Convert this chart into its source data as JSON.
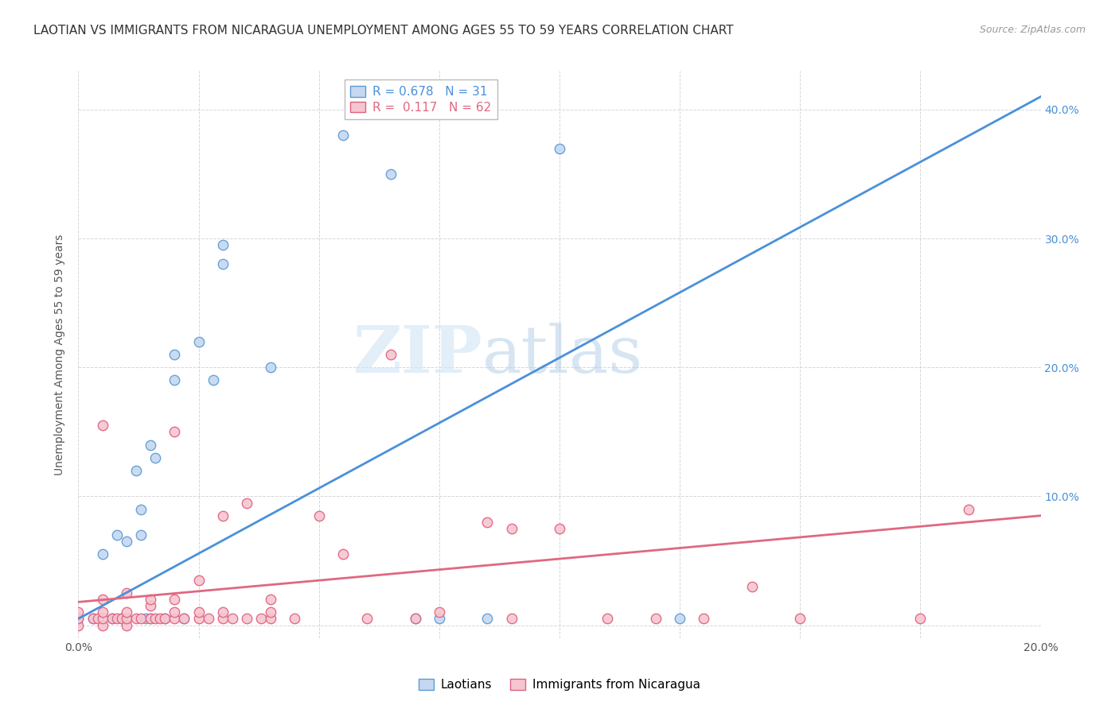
{
  "title": "LAOTIAN VS IMMIGRANTS FROM NICARAGUA UNEMPLOYMENT AMONG AGES 55 TO 59 YEARS CORRELATION CHART",
  "source": "Source: ZipAtlas.com",
  "ylabel": "Unemployment Among Ages 55 to 59 years",
  "watermark_zip": "ZIP",
  "watermark_atlas": "atlas",
  "xlim": [
    0.0,
    0.2
  ],
  "ylim": [
    -0.01,
    0.43
  ],
  "xtick_positions": [
    0.0,
    0.025,
    0.05,
    0.075,
    0.1,
    0.125,
    0.15,
    0.175,
    0.2
  ],
  "xtick_labels": [
    "0.0%",
    "",
    "",
    "",
    "",
    "",
    "",
    "",
    "20.0%"
  ],
  "ytick_positions": [
    0.0,
    0.1,
    0.2,
    0.3,
    0.4
  ],
  "ytick_labels_right": [
    "",
    "10.0%",
    "20.0%",
    "30.0%",
    "40.0%"
  ],
  "legend_r1": "R = 0.678",
  "legend_n1": "N = 31",
  "legend_r2": "R =  0.117",
  "legend_n2": "N = 62",
  "blue_fill": "#c5d8f0",
  "blue_edge": "#5b9bd5",
  "blue_line": "#4a90d9",
  "pink_fill": "#f5c6d0",
  "pink_edge": "#e06080",
  "pink_line": "#e06880",
  "laotian_x": [
    0.0,
    0.003,
    0.005,
    0.007,
    0.008,
    0.009,
    0.01,
    0.01,
    0.012,
    0.013,
    0.013,
    0.014,
    0.015,
    0.015,
    0.016,
    0.018,
    0.02,
    0.02,
    0.022,
    0.025,
    0.028,
    0.03,
    0.03,
    0.04,
    0.055,
    0.065,
    0.07,
    0.075,
    0.085,
    0.1,
    0.125
  ],
  "laotian_y": [
    0.005,
    0.005,
    0.055,
    0.005,
    0.07,
    0.005,
    0.065,
    0.005,
    0.12,
    0.09,
    0.07,
    0.005,
    0.005,
    0.14,
    0.13,
    0.005,
    0.19,
    0.21,
    0.005,
    0.22,
    0.19,
    0.295,
    0.28,
    0.2,
    0.38,
    0.35,
    0.005,
    0.005,
    0.005,
    0.37,
    0.005
  ],
  "nicaragua_x": [
    0.0,
    0.0,
    0.0,
    0.003,
    0.004,
    0.005,
    0.005,
    0.005,
    0.005,
    0.005,
    0.007,
    0.008,
    0.009,
    0.01,
    0.01,
    0.01,
    0.01,
    0.012,
    0.013,
    0.015,
    0.015,
    0.015,
    0.016,
    0.017,
    0.018,
    0.02,
    0.02,
    0.02,
    0.02,
    0.022,
    0.025,
    0.025,
    0.025,
    0.027,
    0.03,
    0.03,
    0.03,
    0.032,
    0.035,
    0.035,
    0.038,
    0.04,
    0.04,
    0.04,
    0.045,
    0.05,
    0.055,
    0.06,
    0.065,
    0.07,
    0.075,
    0.085,
    0.09,
    0.09,
    0.1,
    0.11,
    0.12,
    0.13,
    0.14,
    0.15,
    0.175,
    0.185
  ],
  "nicaragua_y": [
    0.0,
    0.005,
    0.01,
    0.005,
    0.005,
    0.0,
    0.005,
    0.01,
    0.02,
    0.155,
    0.005,
    0.005,
    0.005,
    0.0,
    0.005,
    0.01,
    0.025,
    0.005,
    0.005,
    0.005,
    0.015,
    0.02,
    0.005,
    0.005,
    0.005,
    0.005,
    0.01,
    0.02,
    0.15,
    0.005,
    0.005,
    0.01,
    0.035,
    0.005,
    0.005,
    0.01,
    0.085,
    0.005,
    0.005,
    0.095,
    0.005,
    0.005,
    0.01,
    0.02,
    0.005,
    0.085,
    0.055,
    0.005,
    0.21,
    0.005,
    0.01,
    0.08,
    0.005,
    0.075,
    0.075,
    0.005,
    0.005,
    0.005,
    0.03,
    0.005,
    0.005,
    0.09
  ],
  "blue_trend_x": [
    0.0,
    0.2
  ],
  "blue_trend_y": [
    0.005,
    0.41
  ],
  "pink_trend_x": [
    0.0,
    0.2
  ],
  "pink_trend_y": [
    0.018,
    0.085
  ],
  "grid_color": "#cccccc",
  "bg_color": "#ffffff",
  "title_fontsize": 11,
  "ylabel_fontsize": 10,
  "tick_fontsize": 10,
  "legend_fontsize": 11,
  "source_fontsize": 9,
  "marker_size": 80,
  "marker_linewidth": 1.0
}
